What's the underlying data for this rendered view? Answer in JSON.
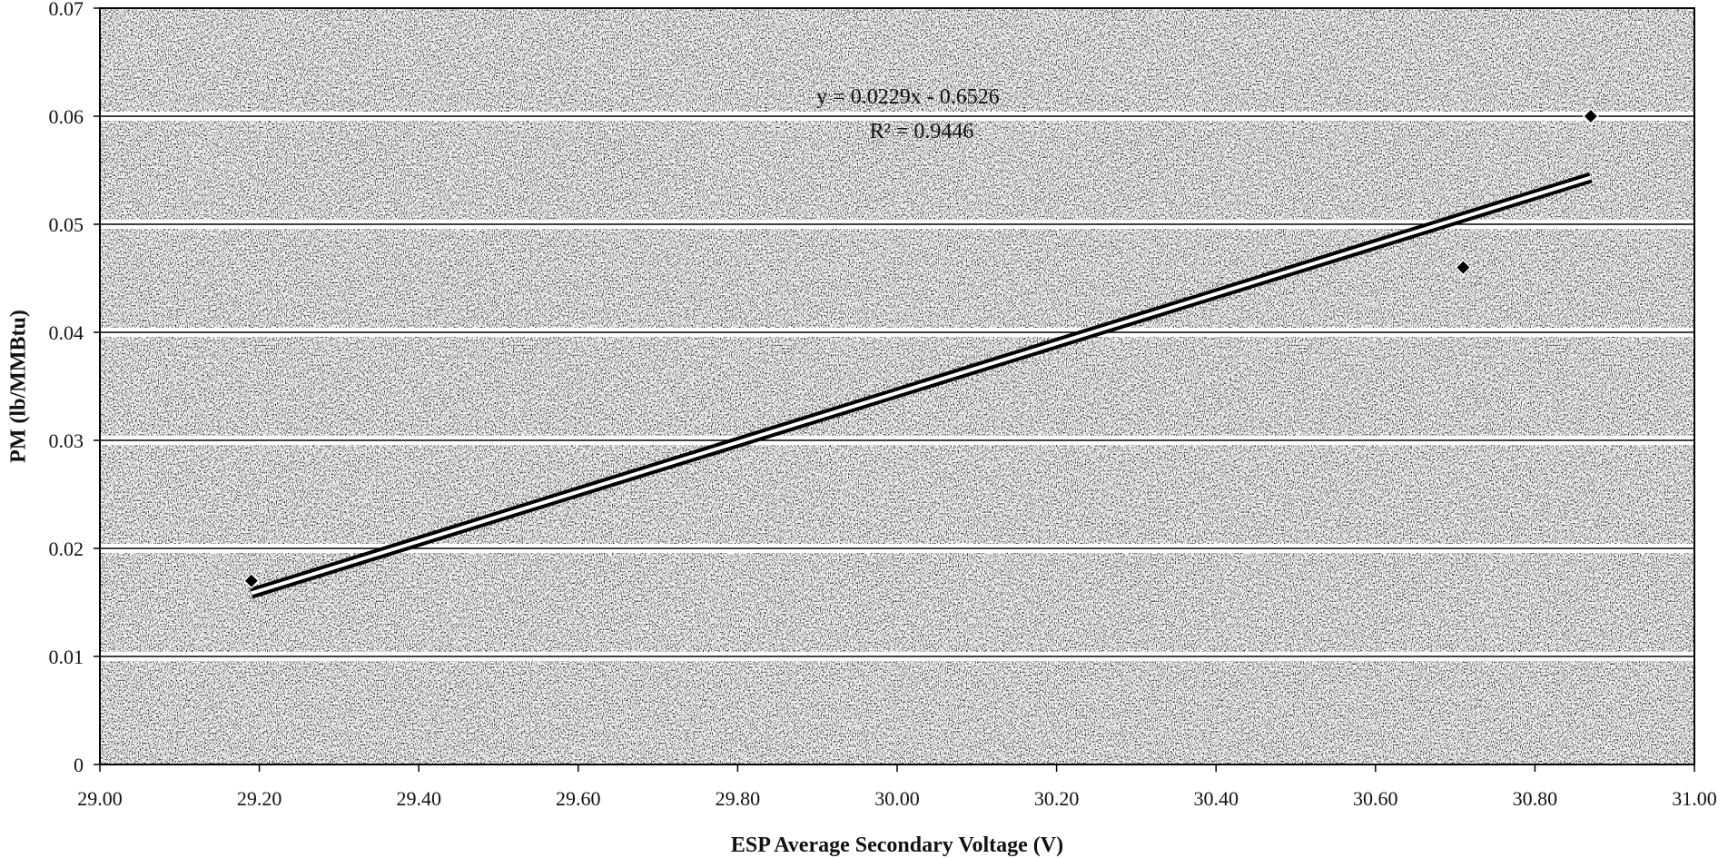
{
  "chart_data": {
    "type": "scatter",
    "title": "",
    "xlabel": "ESP Average Secondary Voltage (V)",
    "ylabel": "PM (lb/MMBtu)",
    "xlim": [
      29.0,
      31.0
    ],
    "ylim": [
      0,
      0.07
    ],
    "x_ticks": [
      "29.00",
      "29.20",
      "29.40",
      "29.60",
      "29.80",
      "30.00",
      "30.20",
      "30.40",
      "30.60",
      "30.80",
      "31.00"
    ],
    "y_ticks": [
      "0",
      "0.01",
      "0.02",
      "0.03",
      "0.04",
      "0.05",
      "0.06",
      "0.07"
    ],
    "grid": "horizontal",
    "series": [
      {
        "points": [
          {
            "x": 29.19,
            "y": 0.017
          },
          {
            "x": 30.71,
            "y": 0.046
          },
          {
            "x": 30.87,
            "y": 0.06
          }
        ],
        "marker": "diamond",
        "color": "#000000"
      }
    ],
    "trendline": {
      "slope": 0.0229,
      "intercept": -0.6526,
      "x_range": [
        29.19,
        30.87
      ]
    },
    "annotations": {
      "equation": "y = 0.0229x - 0.6526",
      "r_squared": "R² = 0.9446"
    }
  }
}
